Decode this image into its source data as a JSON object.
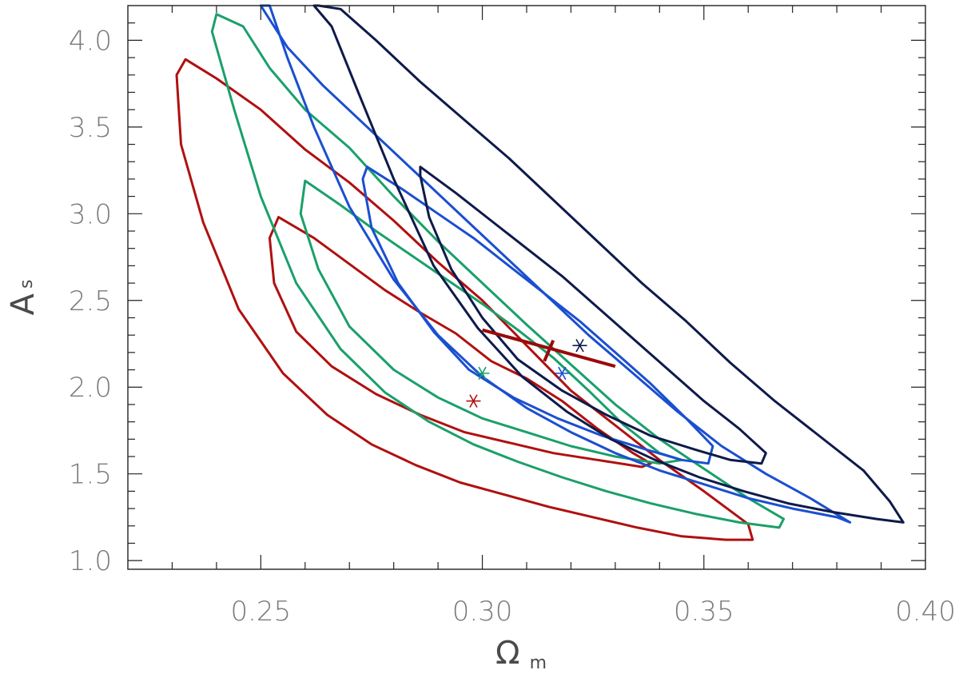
{
  "chart_data": {
    "type": "contour",
    "title": "",
    "xlabel": "Ω",
    "xlabel_sub": "m",
    "ylabel": "A",
    "ylabel_sub": "s",
    "xlim": [
      0.22,
      0.4
    ],
    "ylim": [
      0.95,
      4.2
    ],
    "x_ticks": [
      "0.25",
      "0.30",
      "0.35",
      "0.40"
    ],
    "y_ticks": [
      "1.0",
      "1.5",
      "2.0",
      "2.5",
      "3.0",
      "3.5",
      "4.0"
    ],
    "x_minor_step": 0.01,
    "y_minor_step": 0.1,
    "grid": false,
    "legend": "none",
    "series": [
      {
        "color": "#b01010",
        "best_fit": [
          0.298,
          1.92
        ],
        "contours": [
          [
            [
              0.254,
              2.98
            ],
            [
              0.262,
              2.86
            ],
            [
              0.27,
              2.71
            ],
            [
              0.278,
              2.56
            ],
            [
              0.286,
              2.43
            ],
            [
              0.294,
              2.31
            ],
            [
              0.302,
              2.15
            ],
            [
              0.31,
              2.05
            ],
            [
              0.318,
              1.92
            ],
            [
              0.326,
              1.76
            ],
            [
              0.334,
              1.62
            ],
            [
              0.338,
              1.56
            ],
            [
              0.336,
              1.54
            ],
            [
              0.326,
              1.58
            ],
            [
              0.316,
              1.62
            ],
            [
              0.306,
              1.68
            ],
            [
              0.296,
              1.74
            ],
            [
              0.286,
              1.84
            ],
            [
              0.276,
              1.96
            ],
            [
              0.266,
              2.12
            ],
            [
              0.258,
              2.32
            ],
            [
              0.253,
              2.6
            ],
            [
              0.252,
              2.86
            ]
          ],
          [
            [
              0.233,
              3.89
            ],
            [
              0.24,
              3.78
            ],
            [
              0.25,
              3.6
            ],
            [
              0.26,
              3.37
            ],
            [
              0.27,
              3.18
            ],
            [
              0.28,
              2.96
            ],
            [
              0.29,
              2.72
            ],
            [
              0.3,
              2.5
            ],
            [
              0.31,
              2.24
            ],
            [
              0.32,
              1.98
            ],
            [
              0.33,
              1.78
            ],
            [
              0.34,
              1.58
            ],
            [
              0.35,
              1.4
            ],
            [
              0.36,
              1.21
            ],
            [
              0.361,
              1.12
            ],
            [
              0.355,
              1.12
            ],
            [
              0.345,
              1.14
            ],
            [
              0.335,
              1.19
            ],
            [
              0.325,
              1.25
            ],
            [
              0.315,
              1.31
            ],
            [
              0.305,
              1.38
            ],
            [
              0.295,
              1.45
            ],
            [
              0.285,
              1.55
            ],
            [
              0.275,
              1.67
            ],
            [
              0.265,
              1.84
            ],
            [
              0.255,
              2.08
            ],
            [
              0.245,
              2.45
            ],
            [
              0.237,
              2.95
            ],
            [
              0.232,
              3.4
            ],
            [
              0.231,
              3.8
            ]
          ]
        ]
      },
      {
        "color": "#1aa06a",
        "best_fit": [
          0.3,
          2.08
        ],
        "contours": [
          [
            [
              0.26,
              3.19
            ],
            [
              0.268,
              3.05
            ],
            [
              0.276,
              2.9
            ],
            [
              0.284,
              2.76
            ],
            [
              0.292,
              2.62
            ],
            [
              0.3,
              2.48
            ],
            [
              0.308,
              2.33
            ],
            [
              0.316,
              2.17
            ],
            [
              0.324,
              1.98
            ],
            [
              0.332,
              1.78
            ],
            [
              0.34,
              1.62
            ],
            [
              0.345,
              1.58
            ],
            [
              0.34,
              1.56
            ],
            [
              0.33,
              1.6
            ],
            [
              0.32,
              1.66
            ],
            [
              0.31,
              1.74
            ],
            [
              0.3,
              1.82
            ],
            [
              0.29,
              1.94
            ],
            [
              0.28,
              2.1
            ],
            [
              0.27,
              2.35
            ],
            [
              0.263,
              2.68
            ],
            [
              0.259,
              3.0
            ]
          ],
          [
            [
              0.24,
              4.15
            ],
            [
              0.246,
              4.08
            ],
            [
              0.252,
              3.84
            ],
            [
              0.26,
              3.6
            ],
            [
              0.27,
              3.38
            ],
            [
              0.28,
              3.1
            ],
            [
              0.29,
              2.84
            ],
            [
              0.3,
              2.6
            ],
            [
              0.31,
              2.36
            ],
            [
              0.32,
              2.13
            ],
            [
              0.33,
              1.9
            ],
            [
              0.34,
              1.7
            ],
            [
              0.35,
              1.53
            ],
            [
              0.36,
              1.36
            ],
            [
              0.368,
              1.24
            ],
            [
              0.367,
              1.19
            ],
            [
              0.358,
              1.22
            ],
            [
              0.348,
              1.27
            ],
            [
              0.338,
              1.33
            ],
            [
              0.328,
              1.4
            ],
            [
              0.318,
              1.48
            ],
            [
              0.308,
              1.57
            ],
            [
              0.298,
              1.67
            ],
            [
              0.288,
              1.8
            ],
            [
              0.278,
              1.97
            ],
            [
              0.268,
              2.22
            ],
            [
              0.258,
              2.6
            ],
            [
              0.25,
              3.1
            ],
            [
              0.244,
              3.6
            ],
            [
              0.239,
              4.05
            ]
          ]
        ]
      },
      {
        "color": "#1a4fd0",
        "best_fit": [
          0.318,
          2.08
        ],
        "contours": [
          [
            [
              0.274,
              3.27
            ],
            [
              0.282,
              3.14
            ],
            [
              0.29,
              3.0
            ],
            [
              0.298,
              2.86
            ],
            [
              0.306,
              2.7
            ],
            [
              0.314,
              2.54
            ],
            [
              0.322,
              2.38
            ],
            [
              0.33,
              2.2
            ],
            [
              0.338,
              2.02
            ],
            [
              0.346,
              1.82
            ],
            [
              0.352,
              1.66
            ],
            [
              0.351,
              1.56
            ],
            [
              0.345,
              1.58
            ],
            [
              0.337,
              1.64
            ],
            [
              0.327,
              1.72
            ],
            [
              0.317,
              1.82
            ],
            [
              0.307,
              1.94
            ],
            [
              0.297,
              2.1
            ],
            [
              0.289,
              2.32
            ],
            [
              0.281,
              2.6
            ],
            [
              0.275,
              2.92
            ],
            [
              0.273,
              3.2
            ]
          ],
          [
            [
              0.25,
              4.2
            ],
            [
              0.256,
              3.96
            ],
            [
              0.264,
              3.74
            ],
            [
              0.274,
              3.5
            ],
            [
              0.284,
              3.26
            ],
            [
              0.294,
              3.02
            ],
            [
              0.304,
              2.78
            ],
            [
              0.314,
              2.54
            ],
            [
              0.324,
              2.3
            ],
            [
              0.334,
              2.08
            ],
            [
              0.344,
              1.86
            ],
            [
              0.354,
              1.66
            ],
            [
              0.364,
              1.5
            ],
            [
              0.374,
              1.36
            ],
            [
              0.383,
              1.22
            ],
            [
              0.38,
              1.25
            ],
            [
              0.37,
              1.3
            ],
            [
              0.36,
              1.36
            ],
            [
              0.35,
              1.44
            ],
            [
              0.34,
              1.52
            ],
            [
              0.33,
              1.62
            ],
            [
              0.32,
              1.74
            ],
            [
              0.31,
              1.88
            ],
            [
              0.3,
              2.06
            ],
            [
              0.29,
              2.3
            ],
            [
              0.28,
              2.62
            ],
            [
              0.27,
              3.04
            ],
            [
              0.262,
              3.5
            ],
            [
              0.256,
              3.9
            ],
            [
              0.252,
              4.2
            ]
          ]
        ]
      },
      {
        "color": "#0e1a4a",
        "best_fit": [
          0.322,
          2.24
        ],
        "contours": [
          [
            [
              0.286,
              3.27
            ],
            [
              0.294,
              3.12
            ],
            [
              0.302,
              2.96
            ],
            [
              0.31,
              2.8
            ],
            [
              0.318,
              2.64
            ],
            [
              0.326,
              2.46
            ],
            [
              0.334,
              2.28
            ],
            [
              0.342,
              2.1
            ],
            [
              0.35,
              1.92
            ],
            [
              0.358,
              1.76
            ],
            [
              0.364,
              1.62
            ],
            [
              0.363,
              1.56
            ],
            [
              0.356,
              1.58
            ],
            [
              0.348,
              1.64
            ],
            [
              0.338,
              1.72
            ],
            [
              0.328,
              1.84
            ],
            [
              0.318,
              1.98
            ],
            [
              0.308,
              2.16
            ],
            [
              0.3,
              2.4
            ],
            [
              0.293,
              2.68
            ],
            [
              0.288,
              2.98
            ],
            [
              0.286,
              3.22
            ]
          ],
          [
            [
              0.263,
              4.2
            ],
            [
              0.268,
              4.18
            ],
            [
              0.276,
              4.0
            ],
            [
              0.286,
              3.76
            ],
            [
              0.296,
              3.54
            ],
            [
              0.306,
              3.32
            ],
            [
              0.316,
              3.08
            ],
            [
              0.326,
              2.84
            ],
            [
              0.336,
              2.6
            ],
            [
              0.346,
              2.38
            ],
            [
              0.356,
              2.14
            ],
            [
              0.366,
              1.92
            ],
            [
              0.376,
              1.72
            ],
            [
              0.386,
              1.52
            ],
            [
              0.392,
              1.34
            ],
            [
              0.395,
              1.22
            ],
            [
              0.389,
              1.24
            ],
            [
              0.379,
              1.28
            ],
            [
              0.369,
              1.33
            ],
            [
              0.359,
              1.4
            ],
            [
              0.349,
              1.48
            ],
            [
              0.339,
              1.58
            ],
            [
              0.329,
              1.7
            ],
            [
              0.319,
              1.86
            ],
            [
              0.309,
              2.06
            ],
            [
              0.299,
              2.34
            ],
            [
              0.289,
              2.7
            ],
            [
              0.28,
              3.2
            ],
            [
              0.272,
              3.7
            ],
            [
              0.266,
              4.08
            ],
            [
              0.262,
              4.2
            ]
          ]
        ]
      }
    ],
    "error_cross": {
      "color": "#9a0a0a",
      "center": [
        0.315,
        2.23
      ],
      "major": [
        [
          0.3,
          2.33
        ],
        [
          0.33,
          2.12
        ]
      ],
      "minor": [
        [
          0.314,
          2.15
        ],
        [
          0.316,
          2.27
        ]
      ]
    }
  }
}
